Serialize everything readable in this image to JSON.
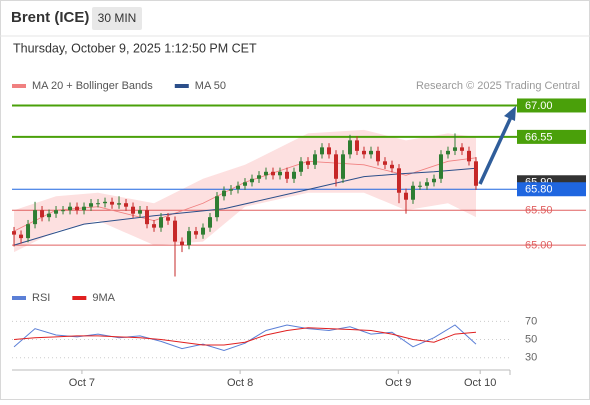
{
  "header": {
    "symbol": "Brent (ICE)",
    "interval": "30 MIN",
    "datetime": "Thursday, October 9, 2025 1:12:50 PM CET",
    "credit": "Research © 2025 Trading Central"
  },
  "chart_data": [
    {
      "type": "candlestick",
      "xlim": [
        -0.29,
        70.86
      ],
      "ylim": [
        64.5,
        67.15
      ],
      "candles": {
        "up_color": "#2e7d32",
        "down_color": "#c62828",
        "open": [
          65.2,
          65.15,
          65.1,
          65.3,
          65.5,
          65.4,
          65.45,
          65.5,
          65.5,
          65.55,
          65.5,
          65.55,
          65.6,
          65.6,
          65.62,
          65.58,
          65.6,
          65.55,
          65.45,
          65.5,
          65.3,
          65.25,
          65.4,
          65.35,
          65.05,
          65.0,
          65.2,
          65.15,
          65.25,
          65.4,
          65.7,
          65.78,
          65.8,
          65.85,
          65.9,
          65.95,
          66.0,
          66.05,
          66.0,
          66.05,
          65.95,
          66.05,
          66.2,
          66.15,
          66.3,
          66.4,
          66.3,
          65.95,
          66.3,
          66.5,
          66.35,
          66.3,
          66.35,
          66.2,
          66.15,
          66.1,
          65.75,
          65.65,
          65.85,
          65.85,
          65.9,
          65.95,
          66.3,
          66.35,
          66.4,
          66.35,
          66.2
        ],
        "high": [
          65.26,
          65.21,
          65.36,
          65.62,
          65.56,
          65.51,
          65.56,
          65.56,
          65.61,
          65.61,
          65.61,
          65.66,
          65.66,
          65.68,
          65.68,
          65.7,
          65.66,
          65.61,
          65.56,
          65.56,
          65.36,
          65.46,
          65.46,
          65.41,
          65.11,
          65.26,
          65.26,
          65.31,
          65.46,
          65.76,
          65.84,
          65.86,
          65.91,
          65.96,
          66.01,
          66.06,
          66.11,
          66.11,
          66.11,
          66.11,
          66.11,
          66.26,
          66.26,
          66.36,
          66.46,
          66.46,
          66.36,
          66.36,
          66.58,
          66.56,
          66.41,
          66.41,
          66.41,
          66.26,
          66.21,
          66.16,
          65.81,
          65.91,
          65.91,
          65.96,
          66.01,
          66.36,
          66.41,
          66.6,
          66.46,
          66.41,
          66.26
        ],
        "low": [
          64.98,
          65.02,
          65.04,
          65.24,
          65.34,
          65.34,
          65.39,
          65.44,
          65.44,
          65.44,
          65.44,
          65.49,
          65.54,
          65.54,
          65.52,
          65.52,
          65.49,
          65.39,
          65.39,
          65.24,
          65.19,
          65.19,
          65.29,
          64.55,
          64.9,
          64.94,
          65.09,
          65.09,
          65.19,
          65.34,
          65.64,
          65.72,
          65.74,
          65.79,
          65.84,
          65.89,
          65.94,
          65.94,
          65.94,
          65.89,
          65.89,
          65.99,
          66.09,
          66.09,
          66.24,
          66.24,
          65.84,
          65.89,
          66.24,
          66.29,
          66.24,
          66.24,
          66.14,
          66.09,
          66.04,
          65.6,
          65.45,
          65.59,
          65.79,
          65.79,
          65.84,
          65.89,
          66.24,
          66.29,
          66.29,
          66.14,
          65.79
        ],
        "close": [
          65.15,
          65.1,
          65.3,
          65.5,
          65.4,
          65.45,
          65.5,
          65.5,
          65.55,
          65.5,
          65.55,
          65.6,
          65.6,
          65.62,
          65.58,
          65.6,
          65.55,
          65.45,
          65.5,
          65.3,
          65.25,
          65.4,
          65.35,
          65.05,
          65.0,
          65.2,
          65.15,
          65.25,
          65.4,
          65.7,
          65.78,
          65.8,
          65.85,
          65.9,
          65.95,
          66.0,
          66.05,
          66.0,
          66.05,
          65.95,
          66.05,
          66.2,
          66.15,
          66.3,
          66.4,
          66.3,
          65.95,
          66.3,
          66.5,
          66.35,
          66.3,
          66.35,
          66.2,
          66.15,
          66.1,
          65.75,
          65.65,
          65.85,
          65.85,
          65.9,
          65.95,
          66.3,
          66.35,
          66.4,
          66.35,
          66.2,
          65.85
        ]
      },
      "series": [
        {
          "name": "MA 20 + Bollinger Bands",
          "color": "#f08080",
          "band_color": "#fde0e0",
          "x": [
            0,
            6,
            12,
            20,
            27,
            33,
            42,
            50,
            56,
            62,
            66
          ],
          "values": [
            65.2,
            65.5,
            65.55,
            65.35,
            65.6,
            65.9,
            66.2,
            66.15,
            66.0,
            66.2,
            66.25
          ],
          "upper": [
            65.5,
            65.7,
            65.75,
            65.6,
            65.95,
            66.15,
            66.6,
            66.65,
            66.5,
            66.6,
            66.55
          ],
          "lower": [
            64.9,
            65.2,
            65.35,
            65.0,
            65.05,
            65.55,
            65.75,
            65.75,
            65.5,
            65.6,
            65.4
          ]
        },
        {
          "name": "MA 50",
          "color": "#2c4f8a",
          "x": [
            0,
            10,
            20,
            30,
            40,
            50,
            55,
            60,
            66
          ],
          "values": [
            65.0,
            65.3,
            65.42,
            65.52,
            65.75,
            65.98,
            66.02,
            66.05,
            66.1
          ]
        }
      ],
      "levels": [
        {
          "value": 67,
          "label": "67.00",
          "color": "#4aa00a",
          "style": "box",
          "line": true
        },
        {
          "value": 66.55,
          "label": "66.55",
          "color": "#4aa00a",
          "style": "box",
          "line": true
        },
        {
          "value": 65.9,
          "label": "65.90",
          "color": "#333333",
          "style": "box",
          "line": false
        },
        {
          "value": 65.8,
          "label": "65.80",
          "color": "#1f66e0",
          "style": "box",
          "line": true
        },
        {
          "value": 65.5,
          "label": "65.50",
          "color": "#e06060",
          "style": "text",
          "line": true
        },
        {
          "value": 65,
          "label": "65.00",
          "color": "#e06060",
          "style": "text",
          "line": true
        }
      ]
    },
    {
      "type": "line",
      "xlim": [
        -0.29,
        70.86
      ],
      "ylim": [
        22,
        77
      ],
      "yticks": [
        30,
        50,
        70
      ],
      "xticks": [
        {
          "value": 9.7,
          "label": "Oct 7"
        },
        {
          "value": 32.3,
          "label": "Oct 8"
        },
        {
          "value": 54.9,
          "label": "Oct 9"
        },
        {
          "value": 66.6,
          "label": "Oct 10"
        }
      ],
      "series": [
        {
          "name": "RSI",
          "color": "#5b7fd6",
          "x": [
            0,
            3,
            6,
            9,
            12,
            15,
            18,
            21,
            24,
            27,
            30,
            33,
            36,
            39,
            42,
            45,
            48,
            51,
            54,
            57,
            60,
            63,
            66
          ],
          "values": [
            42,
            62,
            55,
            53,
            56,
            52,
            54,
            48,
            40,
            45,
            38,
            46,
            60,
            66,
            62,
            60,
            64,
            56,
            58,
            42,
            52,
            66,
            45
          ]
        },
        {
          "name": "9MA",
          "color": "#e02020",
          "x": [
            0,
            3,
            6,
            9,
            12,
            15,
            18,
            21,
            24,
            27,
            30,
            33,
            36,
            39,
            42,
            45,
            48,
            51,
            54,
            57,
            60,
            63,
            66
          ],
          "values": [
            50,
            52,
            53,
            54,
            54,
            53,
            52,
            50,
            47,
            44,
            44,
            47,
            55,
            60,
            63,
            62,
            61,
            60,
            56,
            50,
            47,
            56,
            58
          ]
        }
      ]
    }
  ]
}
